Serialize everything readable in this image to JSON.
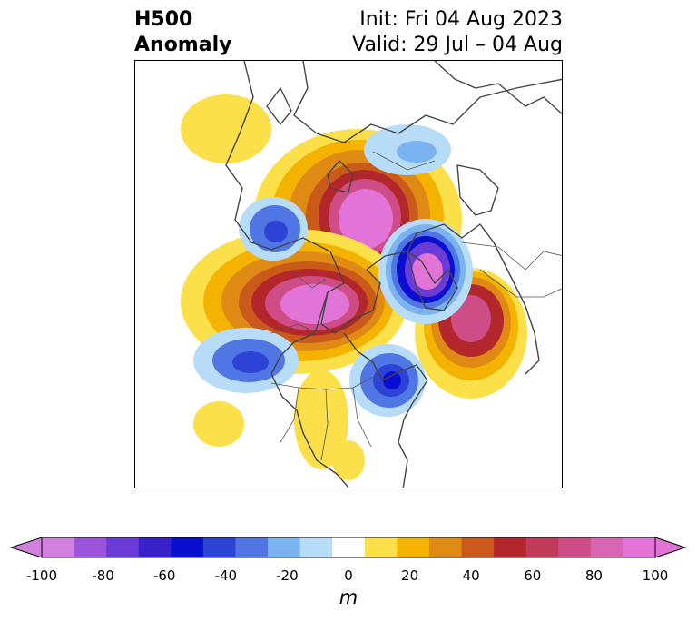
{
  "header": {
    "title_line1": "H500",
    "title_line2": "Anomaly",
    "init": "Init: Fri 04 Aug 2023",
    "valid": "Valid: 29 Jul – 04 Aug"
  },
  "map": {
    "field": "500 hPa geopotential height anomaly",
    "projection": "polar stereographic (North America / Arctic)",
    "positive_colors": [
      "#fbe04a",
      "#f3b300",
      "#e08a16",
      "#c95a1a",
      "#b3262b",
      "#c13a5a",
      "#cf4d86",
      "#d865b2",
      "#e274d8"
    ],
    "negative_colors": [
      "#b7dcf7",
      "#7ab3ef",
      "#4f76e3",
      "#2d43d6",
      "#0a0fcf",
      "#3a20c8",
      "#6a3bd6",
      "#9a55dc",
      "#d37fe0"
    ]
  },
  "colorbar": {
    "ticks": [
      "-100",
      "-80",
      "-60",
      "-40",
      "-20",
      "0",
      "20",
      "40",
      "60",
      "80",
      "100"
    ],
    "unit": "m",
    "colors": [
      "#d37fe0",
      "#9a55dc",
      "#6a3bd6",
      "#3a20c8",
      "#0a0fcf",
      "#2d43d6",
      "#4f76e3",
      "#7ab3ef",
      "#b7dcf7",
      "#ffffff",
      "#fbe04a",
      "#f3b300",
      "#e08a16",
      "#c95a1a",
      "#b3262b",
      "#c13a5a",
      "#cf4d86",
      "#d865b2",
      "#e274d8"
    ]
  }
}
